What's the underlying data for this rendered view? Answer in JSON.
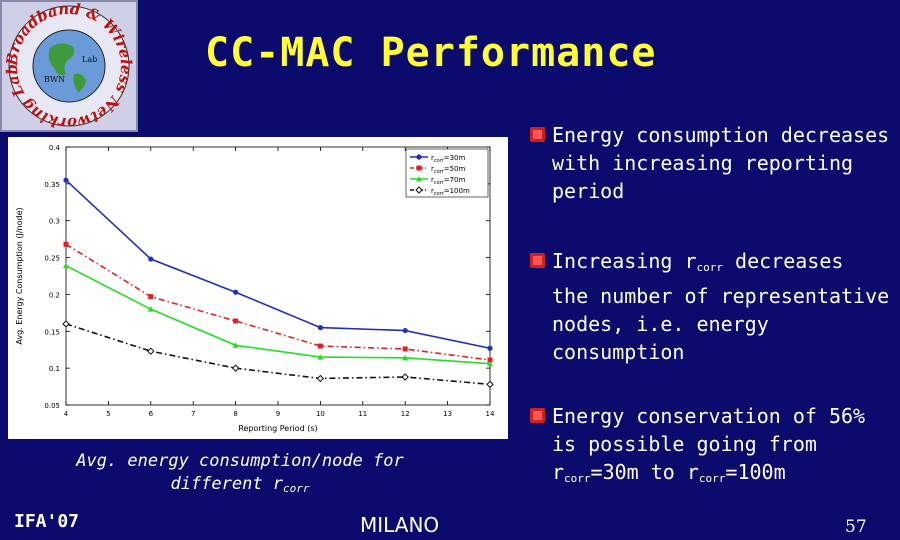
{
  "title": "CC-MAC Performance",
  "logo": {
    "ring_text": "Broadband & Wireless Networking Laboratory",
    "center_left": "BWN",
    "center_right": "Lab"
  },
  "chart_data": {
    "type": "line",
    "title": "",
    "xlabel": "Reporting Period (s)",
    "ylabel": "Avg. Energy Consumption (J/node)",
    "x": [
      4,
      6,
      8,
      10,
      12,
      14
    ],
    "xticks": [
      "4",
      "5",
      "6",
      "7",
      "8",
      "9",
      "10",
      "11",
      "12",
      "13",
      "14"
    ],
    "yticks": [
      "0.05",
      "0.1",
      "0.15",
      "0.2",
      "0.25",
      "0.3",
      "0.35",
      "0.4"
    ],
    "xlim": [
      4,
      14
    ],
    "ylim": [
      0.05,
      0.4
    ],
    "legend_position": "top-right",
    "series": [
      {
        "name": "r_corr = 30m",
        "legend_sub": "corr",
        "legend_val": "=30m",
        "color": "#1f2fbf",
        "dash": "solid",
        "marker": "circle",
        "values": [
          0.355,
          0.248,
          0.203,
          0.155,
          0.151,
          0.127
        ]
      },
      {
        "name": "r_corr = 50m",
        "legend_sub": "corr",
        "legend_val": "=50m",
        "color": "#e02020",
        "dash": "dashdot",
        "marker": "square",
        "values": [
          0.268,
          0.197,
          0.164,
          0.13,
          0.126,
          0.111
        ]
      },
      {
        "name": "r_corr = 70m",
        "legend_sub": "corr",
        "legend_val": "=70m",
        "color": "#22dd22",
        "dash": "solid",
        "marker": "triangle",
        "values": [
          0.239,
          0.18,
          0.131,
          0.115,
          0.114,
          0.106
        ]
      },
      {
        "name": "r_corr = 100m",
        "legend_sub": "corr",
        "legend_val": "=100m",
        "color": "#111111",
        "dash": "dashdot",
        "marker": "diamond",
        "values": [
          0.16,
          0.123,
          0.1,
          0.086,
          0.088,
          0.078
        ]
      }
    ]
  },
  "caption": {
    "line1": "Avg. energy consumption/node for",
    "line2": "different r",
    "sub": "corr"
  },
  "bullets": {
    "b1": {
      "text": "Energy consumption decreases with increasing reporting period"
    },
    "b2": {
      "pre": "Increasing r",
      "sub": "corr",
      "post": " decreases the number of representative nodes, i.e. energy consumption"
    },
    "b3": {
      "line1": "Energy conservation of 56% is possible going from",
      "r": "r",
      "sub1": "corr",
      "eq1": "=30m to ",
      "r2": "r",
      "sub2": "corr",
      "eq2": "=100m"
    }
  },
  "footer": {
    "left": "IFA'07",
    "center": "MILANO",
    "page": "57"
  },
  "colors": {
    "background": "#0b0b6e",
    "title": "#ffff33",
    "bullet_mark": "#cc2222"
  }
}
